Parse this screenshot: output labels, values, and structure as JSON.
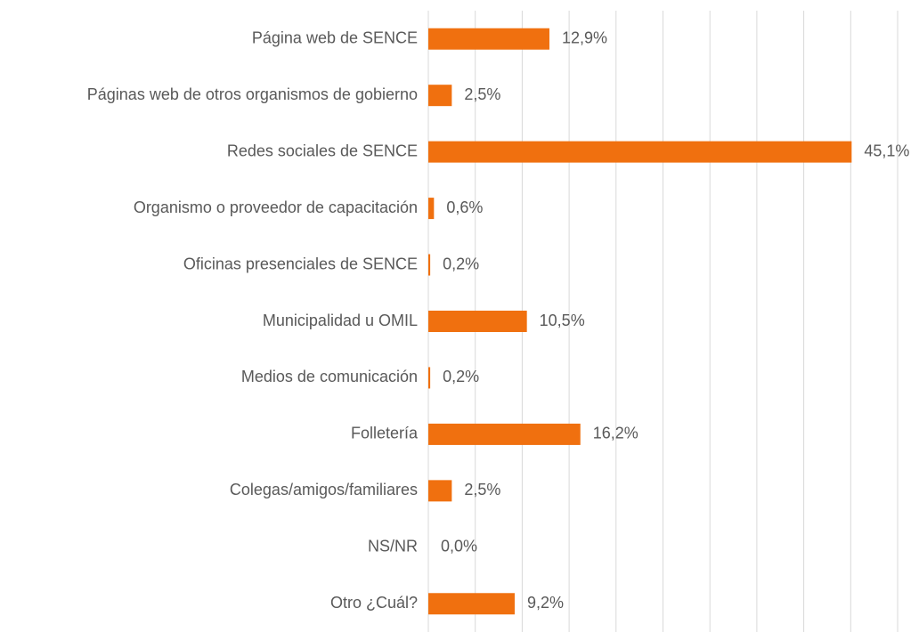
{
  "chart_data": {
    "type": "bar",
    "orientation": "horizontal",
    "categories": [
      "Página web de SENCE",
      "Páginas web de otros organismos de gobierno",
      "Redes sociales de SENCE",
      "Organismo o proveedor de capacitación",
      "Oficinas presenciales de SENCE",
      "Municipalidad u OMIL",
      "Medios de comunicación",
      "Folletería",
      "Colegas/amigos/familiares",
      "NS/NR",
      "Otro ¿Cuál?"
    ],
    "values": [
      12.9,
      2.5,
      45.1,
      0.6,
      0.2,
      10.5,
      0.2,
      16.2,
      2.5,
      0.0,
      9.2
    ],
    "value_labels": [
      "12,9%",
      "2,5%",
      "45,1%",
      "0,6%",
      "0,2%",
      "10,5%",
      "0,2%",
      "16,2%",
      "2,5%",
      "0,0%",
      "9,2%"
    ],
    "color": "#f0700f",
    "xlim": [
      0,
      50
    ],
    "xticks": [
      0,
      5,
      10,
      15,
      20,
      25,
      30,
      35,
      40,
      45,
      50
    ],
    "grid": true
  }
}
